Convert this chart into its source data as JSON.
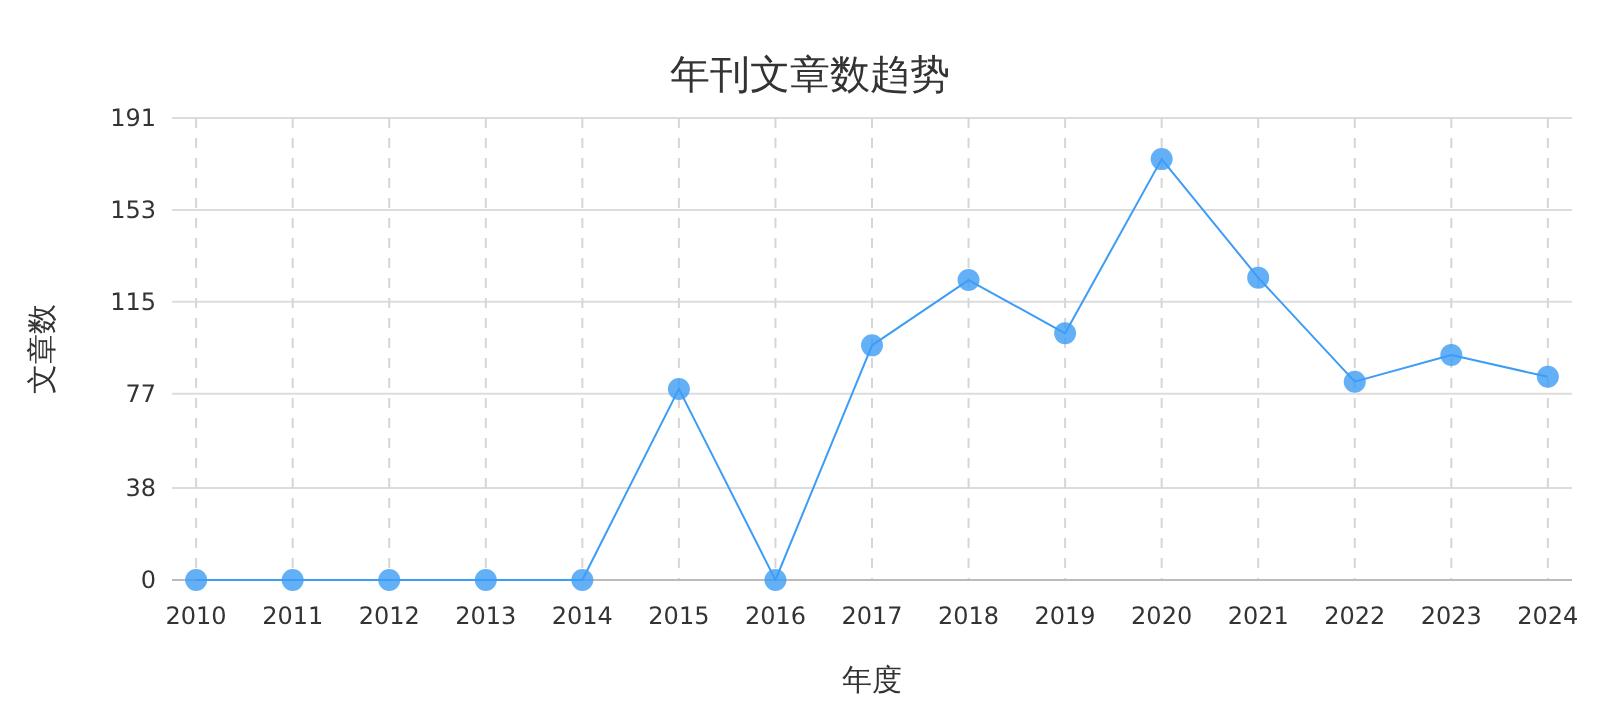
{
  "chart_data": {
    "type": "line",
    "title": "年刊文章数趋势",
    "xlabel": "年度",
    "ylabel": "文章数",
    "categories": [
      "2010",
      "2011",
      "2012",
      "2013",
      "2014",
      "2015",
      "2016",
      "2017",
      "2018",
      "2019",
      "2020",
      "2021",
      "2022",
      "2023",
      "2024"
    ],
    "series": [
      {
        "color": "#3d9cf5",
        "values": [
          0,
          0,
          0,
          0,
          0,
          79,
          0,
          97,
          124,
          102,
          174,
          125,
          82,
          93,
          84
        ]
      }
    ],
    "ylim": [
      0,
      191
    ],
    "yticks": [
      0,
      38,
      77,
      115,
      153,
      191
    ],
    "grid": true,
    "marker": "circle"
  }
}
